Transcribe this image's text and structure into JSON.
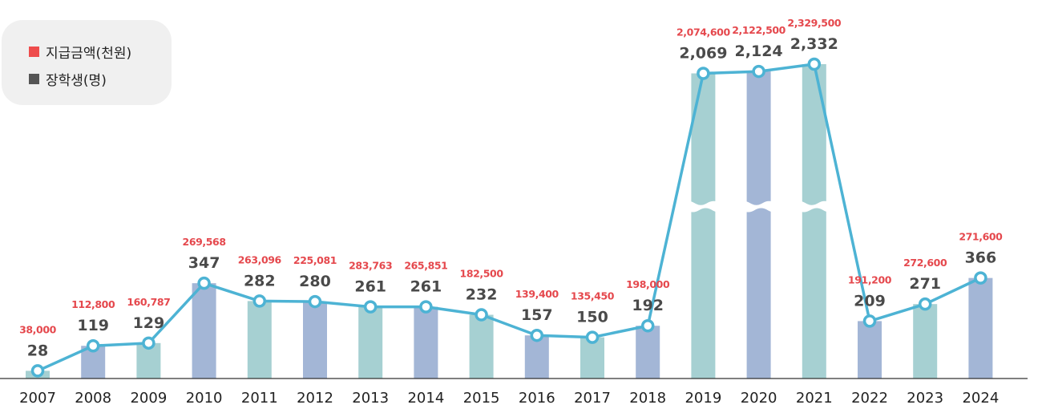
{
  "legend": {
    "items": [
      {
        "label": "지급금액(천원)",
        "color": "#ee4c4c"
      },
      {
        "label": "장학생(명)",
        "color": "#555555"
      }
    ]
  },
  "chart_data": {
    "type": "bar",
    "title": "",
    "xlabel": "",
    "ylabel": "",
    "axis_break": true,
    "break_categories": [
      "2019",
      "2020",
      "2021"
    ],
    "categories": [
      "2007",
      "2008",
      "2009",
      "2010",
      "2011",
      "2012",
      "2013",
      "2014",
      "2015",
      "2016",
      "2017",
      "2018",
      "2019",
      "2020",
      "2021",
      "2022",
      "2023",
      "2024"
    ],
    "series": [
      {
        "name": "장학생(명)",
        "type": "bar+line",
        "values": [
          28,
          119,
          129,
          347,
          282,
          280,
          261,
          261,
          232,
          157,
          150,
          192,
          2069,
          2124,
          2332,
          209,
          271,
          366
        ],
        "labels": [
          "28",
          "119",
          "129",
          "347",
          "282",
          "280",
          "261",
          "261",
          "232",
          "157",
          "150",
          "192",
          "2,069",
          "2,124",
          "2,332",
          "209",
          "271",
          "366"
        ]
      },
      {
        "name": "지급금액(천원)",
        "type": "label",
        "values": [
          38000,
          112800,
          160787,
          269568,
          263096,
          225081,
          283763,
          265851,
          182500,
          139400,
          135450,
          198000,
          2074600,
          2122500,
          2329500,
          191200,
          272600,
          271600
        ],
        "labels": [
          "38,000",
          "112,800",
          "160,787",
          "269,568",
          "263,096",
          "225,081",
          "283,763",
          "265,851",
          "182,500",
          "139,400",
          "135,450",
          "198,000",
          "2,074,600",
          "2,122,500",
          "2,329,500",
          "191,200",
          "272,600",
          "271,600"
        ]
      }
    ],
    "colors": {
      "bar_teal": "#a6d0d2",
      "bar_blue": "#a3b6d6",
      "line": "#4db3d4",
      "count_label": "#4a4a4a",
      "amount_label": "#e5484d"
    },
    "grid": false
  }
}
